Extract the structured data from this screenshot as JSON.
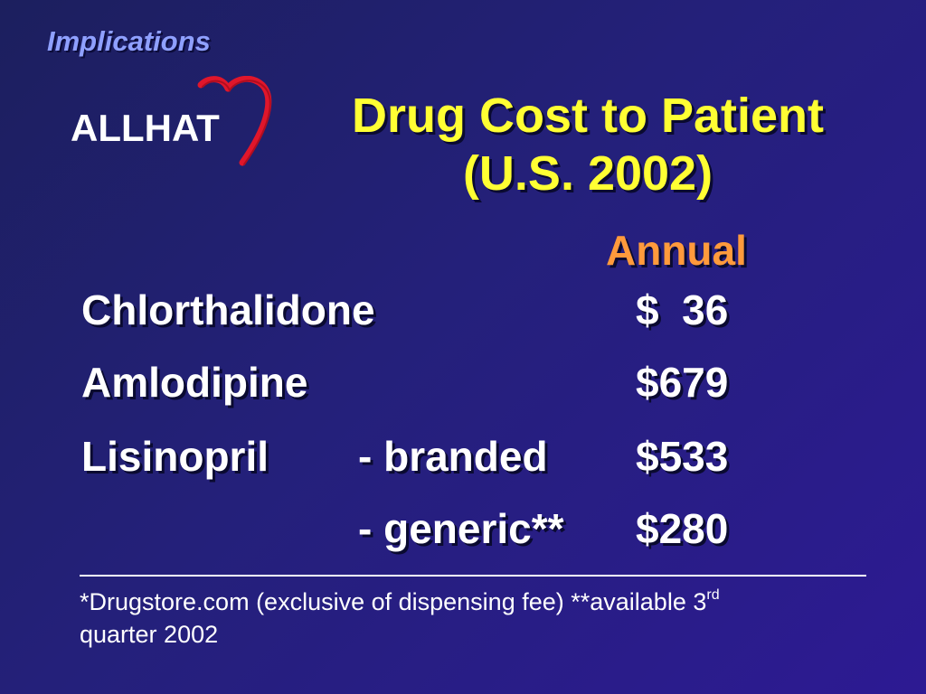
{
  "slide": {
    "section_label": "Implications",
    "logo": {
      "text": "ALLHAT",
      "icon": "heart-icon",
      "heart_color": "#e0162b"
    },
    "title_line1": "Drug Cost to Patient",
    "title_line2": "(U.S. 2002)",
    "column_header": "Annual",
    "rows": [
      {
        "drug": "Chlorthalidone",
        "variant": "",
        "cost": "$  36"
      },
      {
        "drug": "Amlodipine",
        "variant": "",
        "cost": "$679"
      },
      {
        "drug": "Lisinopril",
        "variant": "- branded",
        "cost": "$533"
      },
      {
        "drug": "",
        "variant": "- generic**",
        "cost": "$280"
      }
    ],
    "footnote": {
      "text_before_sup": "*Drugstore.com (exclusive of dispensing fee) **available 3",
      "sup": "rd",
      "text_after_sup": "quarter 2002"
    },
    "colors": {
      "background_start": "#1c1f5e",
      "background_end": "#2d1a93",
      "title": "#ffff33",
      "column_header": "#ff9a3c",
      "section_label": "#8fa0ff",
      "body_text": "#ffffff"
    }
  }
}
